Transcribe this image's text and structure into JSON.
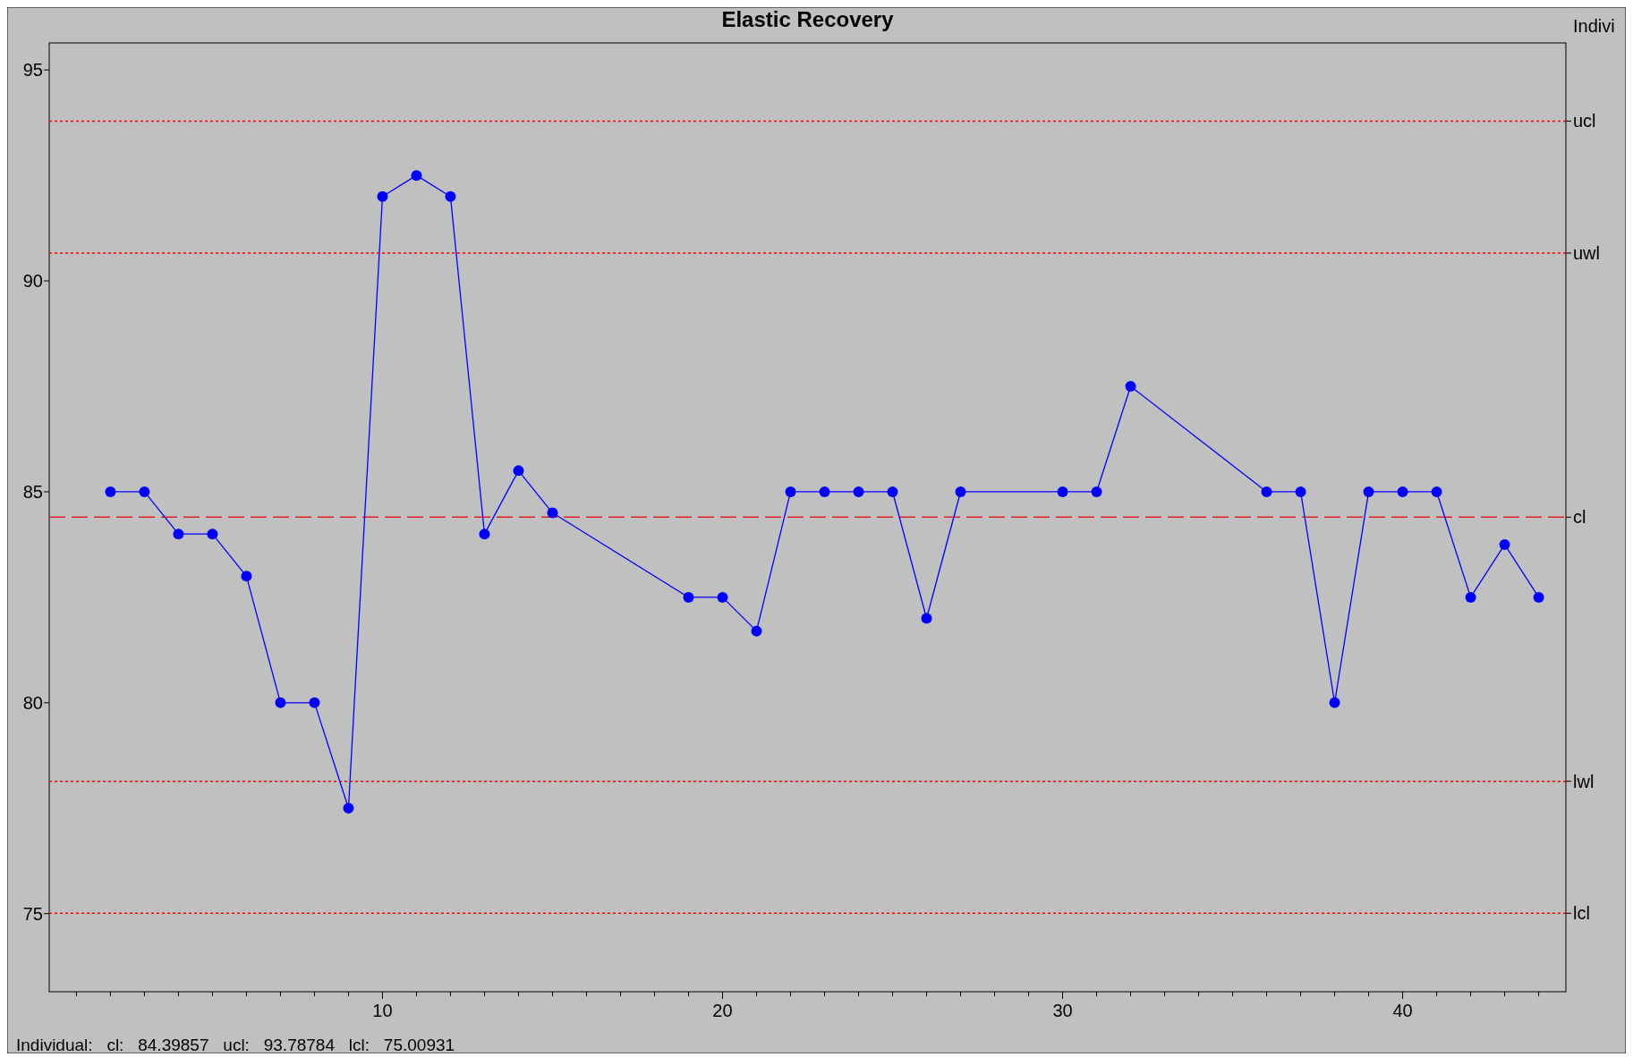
{
  "chart_data": {
    "type": "line",
    "title": "Elastic Recovery",
    "x": [
      2,
      3,
      4,
      5,
      6,
      7,
      8,
      9,
      10,
      11,
      12,
      13,
      14,
      15,
      19,
      20,
      21,
      22,
      23,
      24,
      25,
      26,
      27,
      30,
      31,
      32,
      36,
      37,
      38,
      39,
      40,
      41,
      42,
      43,
      44
    ],
    "series": [
      {
        "color": "#0000ff",
        "values": [
          85,
          85,
          84,
          84,
          83,
          80,
          80,
          77.5,
          92,
          92.5,
          92,
          84,
          85.5,
          84.5,
          82.5,
          82.5,
          81.7,
          85,
          85,
          85,
          85,
          82,
          85,
          85,
          85,
          87.5,
          85,
          85,
          80,
          85,
          85,
          85,
          82.5,
          83.75,
          82.5
        ]
      }
    ],
    "marker": "circle",
    "line_style": "solid",
    "grid": false,
    "xlim": [
      0.2,
      44.8
    ],
    "ylim": [
      73.15,
      95.64
    ],
    "xticks": [
      {
        "value": 1,
        "label": null
      },
      {
        "value": 2,
        "label": null
      },
      {
        "value": 3,
        "label": null
      },
      {
        "value": 4,
        "label": null
      },
      {
        "value": 5,
        "label": null
      },
      {
        "value": 6,
        "label": null
      },
      {
        "value": 7,
        "label": null
      },
      {
        "value": 8,
        "label": null
      },
      {
        "value": 9,
        "label": null
      },
      10,
      {
        "value": 11,
        "label": null
      },
      {
        "value": 12,
        "label": null
      },
      {
        "value": 13,
        "label": null
      },
      {
        "value": 14,
        "label": null
      },
      {
        "value": 15,
        "label": null
      },
      {
        "value": 16,
        "label": null
      },
      {
        "value": 17,
        "label": null
      },
      {
        "value": 18,
        "label": null
      },
      {
        "value": 19,
        "label": null
      },
      20,
      {
        "value": 21,
        "label": null
      },
      {
        "value": 22,
        "label": null
      },
      {
        "value": 23,
        "label": null
      },
      {
        "value": 24,
        "label": null
      },
      {
        "value": 25,
        "label": null
      },
      {
        "value": 26,
        "label": null
      },
      {
        "value": 27,
        "label": null
      },
      {
        "value": 28,
        "label": null
      },
      {
        "value": 29,
        "label": null
      },
      30,
      {
        "value": 31,
        "label": null
      },
      {
        "value": 32,
        "label": null
      },
      {
        "value": 33,
        "label": null
      },
      {
        "value": 34,
        "label": null
      },
      {
        "value": 35,
        "label": null
      },
      {
        "value": 36,
        "label": null
      },
      {
        "value": 37,
        "label": null
      },
      {
        "value": 38,
        "label": null
      },
      {
        "value": 39,
        "label": null
      },
      40,
      {
        "value": 41,
        "label": null
      },
      {
        "value": 42,
        "label": null
      },
      {
        "value": 43,
        "label": null
      },
      {
        "value": 44,
        "label": null
      }
    ],
    "yticks": [
      75,
      80,
      85,
      90,
      95
    ],
    "ref_lines": [
      {
        "axis": "y",
        "value": 93.78784,
        "label": "ucl",
        "color": "#ff0000",
        "line_style": "dotted"
      },
      {
        "axis": "y",
        "value": 90.65809,
        "label": "uwl",
        "color": "#ff0000",
        "line_style": "dotted"
      },
      {
        "axis": "y",
        "value": 84.39857,
        "label": "cl",
        "color": "#e02020",
        "line_style": "dashed"
      },
      {
        "axis": "y",
        "value": 78.13906,
        "label": "lwl",
        "color": "#ff0000",
        "line_style": "dotted"
      },
      {
        "axis": "y",
        "value": 75.00931,
        "label": "lcl",
        "color": "#ff0000",
        "line_style": "dotted"
      }
    ],
    "annotations": [
      "Indivi",
      "Individual:   cl:   84.39857   ucl:   93.78784   lcl:   75.00931"
    ]
  }
}
